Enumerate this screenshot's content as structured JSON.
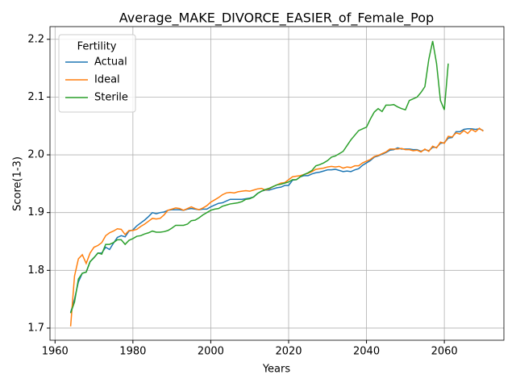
{
  "chart_data": {
    "type": "line",
    "title": "Average_MAKE_DIVORCE_EASIER_of_Female_Pop",
    "xlabel": "Years",
    "ylabel": "Score(1-3)",
    "legend_title": "Fertility",
    "legend": "upper left",
    "grid": true,
    "xlim": [
      1958.7,
      2075.3
    ],
    "ylim": [
      1.679,
      2.222
    ],
    "xticks": [
      1960,
      1980,
      2000,
      2020,
      2040,
      2060
    ],
    "yticks": [
      1.7,
      1.8,
      1.9,
      {
        "value": 2,
        "label": "2.0"
      },
      2.1,
      2.2
    ],
    "x": [
      1964,
      1965,
      1966,
      1967,
      1968,
      1969,
      1970,
      1971,
      1972,
      1973,
      1974,
      1975,
      1976,
      1977,
      1978,
      1979,
      1980,
      1981,
      1982,
      1983,
      1984,
      1985,
      1986,
      1987,
      1988,
      1989,
      1990,
      1991,
      1992,
      1993,
      1994,
      1995,
      1996,
      1997,
      1998,
      1999,
      2000,
      2001,
      2002,
      2003,
      2004,
      2005,
      2006,
      2007,
      2008,
      2009,
      2010,
      2011,
      2012,
      2013,
      2014,
      2015,
      2016,
      2017,
      2018,
      2019,
      2020,
      2021,
      2022,
      2023,
      2024,
      2025,
      2026,
      2027,
      2028,
      2029,
      2030,
      2031,
      2032,
      2033,
      2034,
      2035,
      2036,
      2037,
      2038,
      2039,
      2040,
      2041,
      2042,
      2043,
      2044,
      2045,
      2046,
      2047,
      2048,
      2049,
      2050,
      2051,
      2052,
      2053,
      2054,
      2055,
      2056,
      2057,
      2058,
      2059,
      2060,
      2061,
      2062,
      2063,
      2064,
      2065,
      2066,
      2067,
      2068,
      2069,
      2070
    ],
    "series": [
      {
        "name": "Actual",
        "color": "#1f77b4",
        "values": [
          1.727,
          1.75,
          1.78,
          1.795,
          1.797,
          1.815,
          1.822,
          1.83,
          1.83,
          1.84,
          1.836,
          1.847,
          1.857,
          1.86,
          1.858,
          1.868,
          1.87,
          1.877,
          1.882,
          1.887,
          1.893,
          1.9,
          1.898,
          1.9,
          1.901,
          1.904,
          1.905,
          1.905,
          1.905,
          1.904,
          1.906,
          1.907,
          1.906,
          1.905,
          1.906,
          1.906,
          1.91,
          1.913,
          1.916,
          1.917,
          1.92,
          1.923,
          1.923,
          1.923,
          1.923,
          1.924,
          1.925,
          1.927,
          1.933,
          1.937,
          1.939,
          1.939,
          1.941,
          1.943,
          1.944,
          1.947,
          1.947,
          1.956,
          1.957,
          1.962,
          1.964,
          1.964,
          1.967,
          1.969,
          1.97,
          1.972,
          1.974,
          1.974,
          1.975,
          1.973,
          1.971,
          1.972,
          1.971,
          1.974,
          1.976,
          1.982,
          1.986,
          1.99,
          1.996,
          1.998,
          2.001,
          2.004,
          2.008,
          2.009,
          2.012,
          2.01,
          2.01,
          2.01,
          2.009,
          2.009,
          2.006,
          2.009,
          2.007,
          2.013,
          2.013,
          2.02,
          2.021,
          2.029,
          2.03,
          2.04,
          2.04,
          2.044,
          2.045,
          2.045,
          2.044,
          2.045,
          2.042
        ]
      },
      {
        "name": "Ideal",
        "color": "#ff7f0e",
        "values": [
          1.703,
          1.79,
          1.82,
          1.827,
          1.812,
          1.83,
          1.84,
          1.843,
          1.848,
          1.86,
          1.865,
          1.868,
          1.872,
          1.871,
          1.862,
          1.869,
          1.869,
          1.871,
          1.876,
          1.88,
          1.885,
          1.89,
          1.889,
          1.89,
          1.896,
          1.904,
          1.906,
          1.908,
          1.907,
          1.904,
          1.907,
          1.91,
          1.907,
          1.905,
          1.908,
          1.912,
          1.918,
          1.922,
          1.926,
          1.931,
          1.934,
          1.935,
          1.934,
          1.936,
          1.937,
          1.938,
          1.937,
          1.939,
          1.941,
          1.942,
          1.939,
          1.941,
          1.945,
          1.948,
          1.951,
          1.952,
          1.957,
          1.962,
          1.963,
          1.964,
          1.966,
          1.968,
          1.971,
          1.975,
          1.976,
          1.977,
          1.979,
          1.98,
          1.979,
          1.98,
          1.977,
          1.979,
          1.978,
          1.981,
          1.981,
          1.986,
          1.989,
          1.992,
          1.997,
          1.999,
          2.002,
          2.005,
          2.01,
          2.01,
          2.01,
          2.011,
          2.009,
          2.009,
          2.007,
          2.008,
          2.005,
          2.01,
          2.006,
          2.015,
          2.012,
          2.022,
          2.02,
          2.032,
          2.031,
          2.038,
          2.036,
          2.042,
          2.037,
          2.044,
          2.04,
          2.046,
          2.041
        ]
      },
      {
        "name": "Sterile",
        "color": "#2ca02c",
        "values": [
          1.726,
          1.745,
          1.785,
          1.795,
          1.797,
          1.815,
          1.822,
          1.83,
          1.828,
          1.845,
          1.845,
          1.848,
          1.853,
          1.853,
          1.845,
          1.852,
          1.855,
          1.859,
          1.86,
          1.863,
          1.865,
          1.868,
          1.866,
          1.866,
          1.867,
          1.869,
          1.873,
          1.878,
          1.878,
          1.878,
          1.88,
          1.886,
          1.887,
          1.891,
          1.896,
          1.9,
          1.904,
          1.906,
          1.907,
          1.911,
          1.913,
          1.915,
          1.916,
          1.917,
          1.919,
          1.923,
          1.924,
          1.927,
          1.933,
          1.937,
          1.94,
          1.942,
          1.945,
          1.948,
          1.949,
          1.951,
          1.953,
          1.957,
          1.957,
          1.962,
          1.966,
          1.969,
          1.973,
          1.981,
          1.983,
          1.986,
          1.99,
          1.996,
          1.998,
          2.002,
          2.006,
          2.016,
          2.026,
          2.034,
          2.042,
          2.045,
          2.048,
          2.062,
          2.074,
          2.08,
          2.075,
          2.086,
          2.086,
          2.087,
          2.083,
          2.08,
          2.078,
          2.094,
          2.097,
          2.1,
          2.108,
          2.118,
          2.165,
          2.197,
          2.158,
          2.094,
          2.078,
          2.158,
          null,
          null,
          null,
          null,
          null,
          null,
          null,
          null,
          null
        ]
      }
    ]
  }
}
